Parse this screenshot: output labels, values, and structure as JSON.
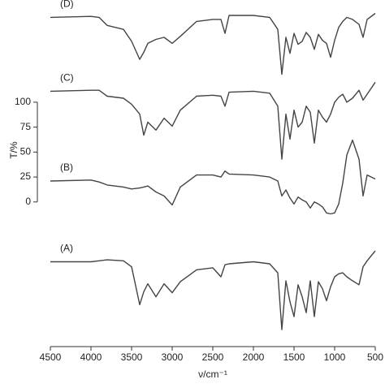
{
  "chart_data": {
    "type": "line",
    "xlabel": "ν/cm⁻¹",
    "ylabel": "T/%",
    "x": [
      4500,
      4000,
      3900,
      3800,
      3600,
      3500,
      3400,
      3350,
      3300,
      3200,
      3100,
      3000,
      2900,
      2700,
      2500,
      2400,
      2350,
      2300,
      2000,
      1800,
      1700,
      1650,
      1600,
      1550,
      1500,
      1450,
      1400,
      1350,
      1300,
      1250,
      1200,
      1150,
      1100,
      1050,
      1000,
      950,
      900,
      850,
      780,
      700,
      650,
      600,
      500
    ],
    "series": [
      {
        "name": "(A)",
        "color": "#444444",
        "values": [
          -60,
          -60,
          -59,
          -58,
          -59,
          -65,
          -103,
          -90,
          -82,
          -95,
          -82,
          -91,
          -80,
          -68,
          -66,
          -75,
          -63,
          -62,
          -60,
          -62,
          -71,
          -128,
          -79,
          -100,
          -115,
          -83,
          -95,
          -111,
          -79,
          -115,
          -80,
          -87,
          -99,
          -85,
          -75,
          -72,
          -71,
          -75,
          -79,
          -83,
          -65,
          -59,
          -49
        ]
      },
      {
        "name": "(B)",
        "color": "#444444",
        "values": [
          21,
          22,
          20,
          17,
          15,
          13,
          14,
          15,
          16,
          10,
          6,
          -3,
          15,
          27,
          27,
          25,
          31,
          28,
          27,
          25,
          21,
          6,
          12,
          4,
          -2,
          5,
          2,
          0,
          -6,
          0,
          -2,
          -5,
          -11,
          -12,
          -11,
          -2,
          19,
          47,
          62,
          43,
          6,
          27,
          23
        ]
      },
      {
        "name": "(C)",
        "color": "#444444",
        "values": [
          111,
          112,
          112,
          106,
          104,
          98,
          88,
          67,
          80,
          72,
          84,
          76,
          92,
          106,
          107,
          106,
          96,
          110,
          111,
          109,
          96,
          43,
          88,
          63,
          92,
          75,
          80,
          96,
          90,
          59,
          92,
          85,
          80,
          88,
          100,
          105,
          108,
          100,
          104,
          112,
          102,
          108,
          120
        ]
      },
      {
        "name": "(D)",
        "color": "#444444",
        "values": [
          185,
          186,
          185,
          177,
          173,
          161,
          143,
          150,
          159,
          163,
          165,
          159,
          166,
          181,
          183,
          183,
          169,
          187,
          187,
          185,
          173,
          128,
          165,
          149,
          169,
          158,
          161,
          170,
          165,
          153,
          168,
          162,
          159,
          145,
          162,
          175,
          181,
          185,
          183,
          178,
          165,
          183,
          189
        ]
      }
    ],
    "xlim": [
      4500,
      500
    ],
    "xticks": [
      4500,
      4000,
      3500,
      3000,
      2500,
      2000,
      1500,
      1000,
      500
    ],
    "ylim": [
      -145,
      200
    ],
    "yticks": [
      0,
      25,
      50,
      75,
      100
    ]
  }
}
